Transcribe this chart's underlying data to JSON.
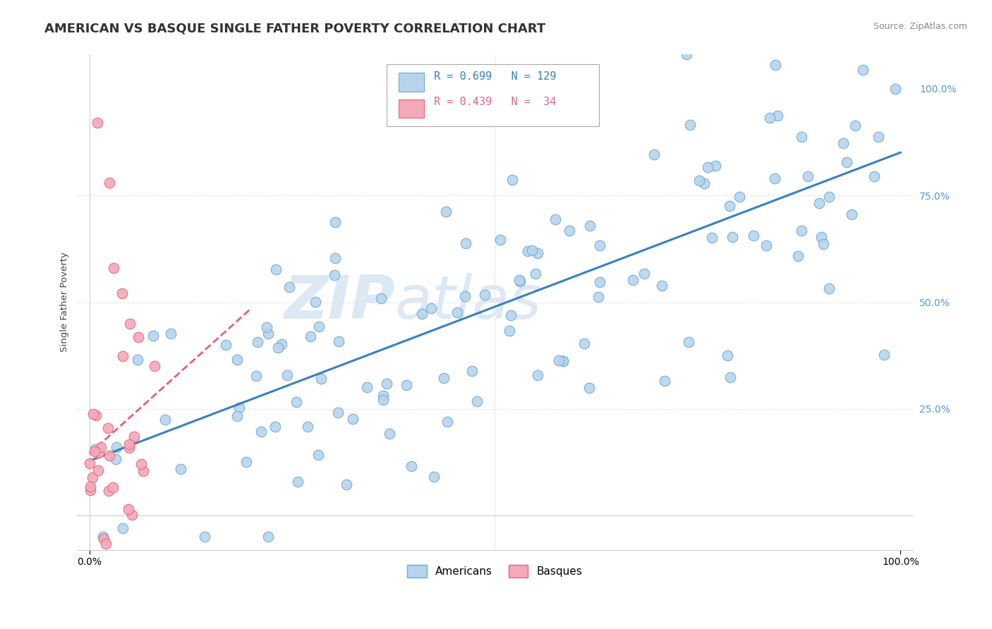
{
  "title": "AMERICAN VS BASQUE SINGLE FATHER POVERTY CORRELATION CHART",
  "source": "Source: ZipAtlas.com",
  "ylabel": "Single Father Poverty",
  "american_R": 0.699,
  "american_N": 129,
  "basque_R": 0.439,
  "basque_N": 34,
  "american_color": "#b8d4ed",
  "american_edge_color": "#6aaad4",
  "basque_color": "#f4a8b8",
  "basque_edge_color": "#e06880",
  "american_line_color": "#3a7fbf",
  "basque_line_color": "#e06080",
  "watermark_color": "#dde8f5",
  "background_color": "#ffffff",
  "grid_color": "#e8e8e8",
  "right_tick_color": "#5599cc"
}
